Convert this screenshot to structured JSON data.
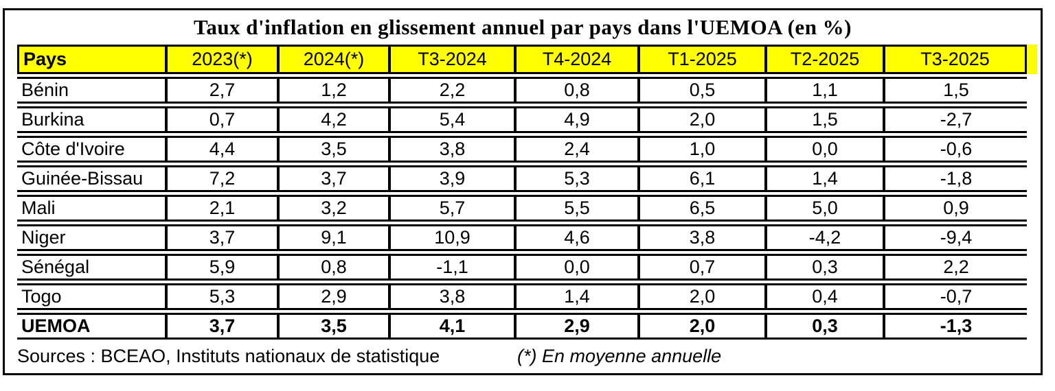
{
  "colors": {
    "header_bg": "#FFFF00",
    "border": "#000000",
    "background": "#FFFFFF",
    "text": "#000000"
  },
  "chart_data": {
    "type": "table",
    "title": "Taux d'inflation en glissement annuel par pays dans l'UEMOA (en %)",
    "columns": [
      "Pays",
      "2023(*)",
      "2024(*)",
      "T3-2024",
      "T4-2024",
      "T1-2025",
      "T2-2025",
      "T3-2025"
    ],
    "rows": [
      {
        "pays": "Bénin",
        "values": [
          "2,7",
          "1,2",
          "2,2",
          "0,8",
          "0,5",
          "1,1",
          "1,5"
        ],
        "bold": false
      },
      {
        "pays": "Burkina",
        "values": [
          "0,7",
          "4,2",
          "5,4",
          "4,9",
          "2,0",
          "1,5",
          "-2,7"
        ],
        "bold": false
      },
      {
        "pays": "Côte d'Ivoire",
        "values": [
          "4,4",
          "3,5",
          "3,8",
          "2,4",
          "1,0",
          "0,0",
          "-0,6"
        ],
        "bold": false
      },
      {
        "pays": "Guinée-Bissau",
        "values": [
          "7,2",
          "3,7",
          "3,9",
          "5,3",
          "6,1",
          "1,4",
          "-1,8"
        ],
        "bold": false
      },
      {
        "pays": "Mali",
        "values": [
          "2,1",
          "3,2",
          "5,7",
          "5,5",
          "6,5",
          "5,0",
          "0,9"
        ],
        "bold": false
      },
      {
        "pays": "Niger",
        "values": [
          "3,7",
          "9,1",
          "10,9",
          "4,6",
          "3,8",
          "-4,2",
          "-9,4"
        ],
        "bold": false
      },
      {
        "pays": "Sénégal",
        "values": [
          "5,9",
          "0,8",
          "-1,1",
          "0,0",
          "0,7",
          "0,3",
          "2,2"
        ],
        "bold": false
      },
      {
        "pays": "Togo",
        "values": [
          "5,3",
          "2,9",
          "3,8",
          "1,4",
          "2,0",
          "0,4",
          "-0,7"
        ],
        "bold": false
      },
      {
        "pays": "UEMOA",
        "values": [
          "3,7",
          "3,5",
          "4,1",
          "2,9",
          "2,0",
          "0,3",
          "-1,3"
        ],
        "bold": true
      }
    ],
    "footer_sources": "Sources : BCEAO, Instituts nationaux de statistique",
    "footer_note": "(*) En moyenne annuelle"
  }
}
